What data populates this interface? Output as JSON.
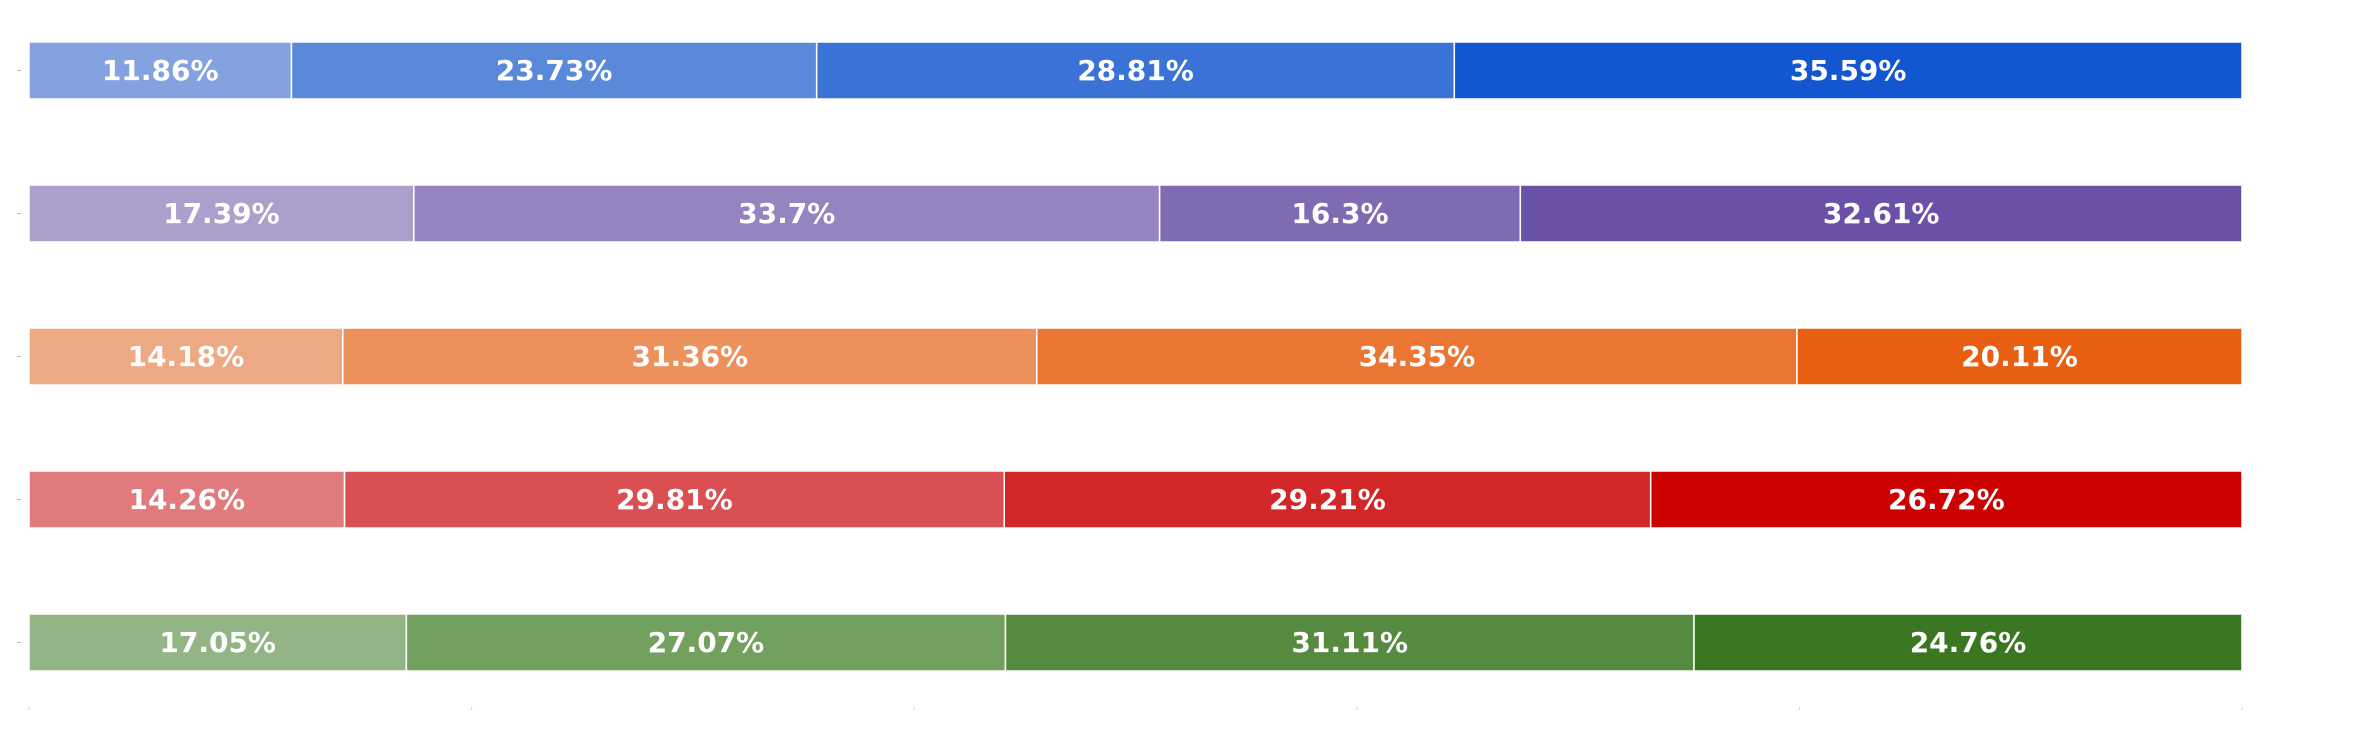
{
  "chart_data": {
    "type": "bar",
    "orientation": "horizontal",
    "stacked": true,
    "normalized_percent": true,
    "grid": false,
    "legend": "none",
    "title": "",
    "xlabel": "",
    "ylabel": "",
    "xlim": [
      0,
      100
    ],
    "rows": [
      {
        "colors": [
          "#84a2df",
          "#5a89da",
          "#3a72d5",
          "#1257cf"
        ],
        "values": [
          11.86,
          23.73,
          28.81,
          35.59
        ],
        "labels": [
          "11.86%",
          "23.73%",
          "28.81%",
          "35.59%"
        ]
      },
      {
        "colors": [
          "#ad9fcc",
          "#9684c1",
          "#806ab2",
          "#6a50a7"
        ],
        "values": [
          17.39,
          33.7,
          16.3,
          32.61
        ],
        "labels": [
          "17.39%",
          "33.7%",
          "16.3%",
          "32.61%"
        ]
      },
      {
        "colors": [
          "#eda984",
          "#ec915c",
          "#eb7633",
          "#e95f12"
        ],
        "values": [
          14.18,
          31.36,
          34.35,
          20.11
        ],
        "labels": [
          "14.18%",
          "31.36%",
          "34.35%",
          "20.11%"
        ]
      },
      {
        "colors": [
          "#e07a7c",
          "#da4f52",
          "#d22729",
          "#cc0202"
        ],
        "values": [
          14.26,
          29.81,
          29.21,
          26.72
        ],
        "labels": [
          "14.26%",
          "29.81%",
          "29.21%",
          "26.72%"
        ]
      },
      {
        "colors": [
          "#93b585",
          "#72a05f",
          "#558a40",
          "#3b7622"
        ],
        "values": [
          17.05,
          27.07,
          31.11,
          24.76
        ],
        "labels": [
          "17.05%",
          "27.07%",
          "31.11%",
          "24.76%"
        ]
      }
    ]
  }
}
